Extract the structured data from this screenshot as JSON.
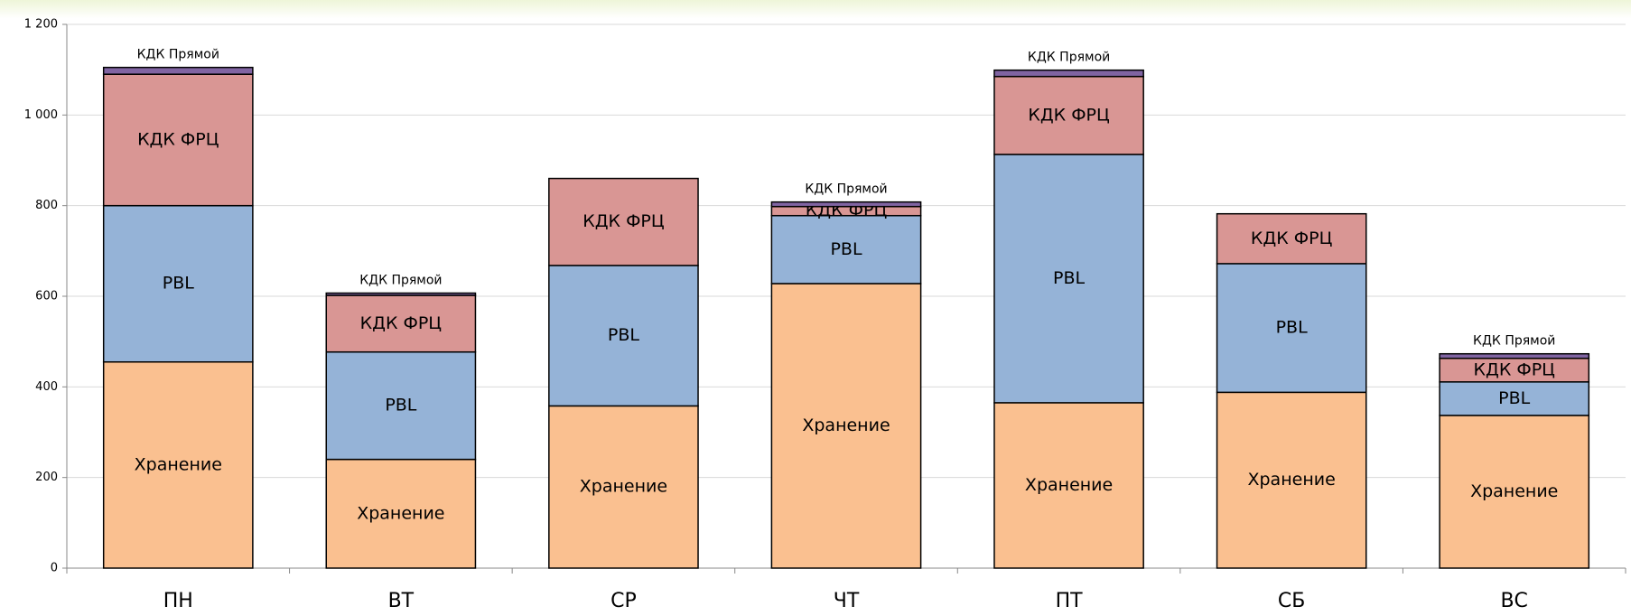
{
  "chart_data": {
    "type": "stacked_bar",
    "categories": [
      "ПН",
      "ВТ",
      "СР",
      "ЧТ",
      "ПТ",
      "СБ",
      "ВС"
    ],
    "series": [
      {
        "name": "Хранение",
        "color": "#fac090",
        "values": [
          455,
          240,
          358,
          628,
          365,
          388,
          337
        ]
      },
      {
        "name": "PBL",
        "color": "#95b3d7",
        "values": [
          345,
          237,
          310,
          150,
          548,
          284,
          74
        ]
      },
      {
        "name": "КДК ФРЦ",
        "color": "#d99694",
        "values": [
          290,
          125,
          192,
          20,
          172,
          110,
          52
        ]
      },
      {
        "name": "КДК Прямой",
        "color": "#8064a2",
        "values": [
          15,
          5,
          0,
          10,
          14,
          0,
          10
        ]
      }
    ],
    "ylim": [
      0,
      1200
    ],
    "yticks": [
      0,
      200,
      400,
      600,
      800,
      {
        "value": 1000,
        "label": "1 000"
      },
      {
        "value": 1200,
        "label": "1 200"
      }
    ],
    "grid": true
  }
}
